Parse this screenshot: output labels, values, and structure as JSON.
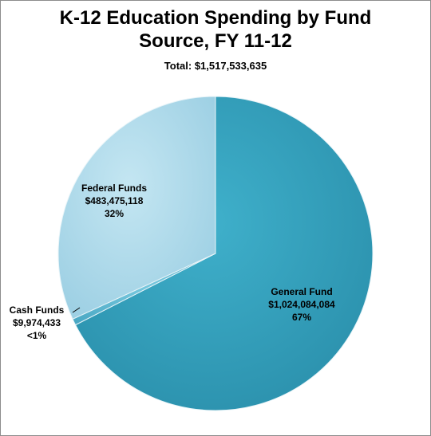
{
  "chart_data": {
    "type": "pie",
    "title_line1": "K-12 Education Spending by Fund",
    "title_line2": "Source, FY 11-12",
    "subtitle": "Total: $1,517,533,635",
    "slices": [
      {
        "name": "General Fund",
        "value": 1024084084,
        "value_label": "$1,024,084,084",
        "pct_label": "67%",
        "color": "#2e9ab5"
      },
      {
        "name": "Cash Funds",
        "value": 9974433,
        "value_label": "$9,974,433",
        "pct_label": "<1%",
        "color": "#5fb9d1"
      },
      {
        "name": "Federal Funds",
        "value": 483475118,
        "value_label": "$483,475,118",
        "pct_label": "32%",
        "color": "#a9d6e8"
      }
    ]
  }
}
